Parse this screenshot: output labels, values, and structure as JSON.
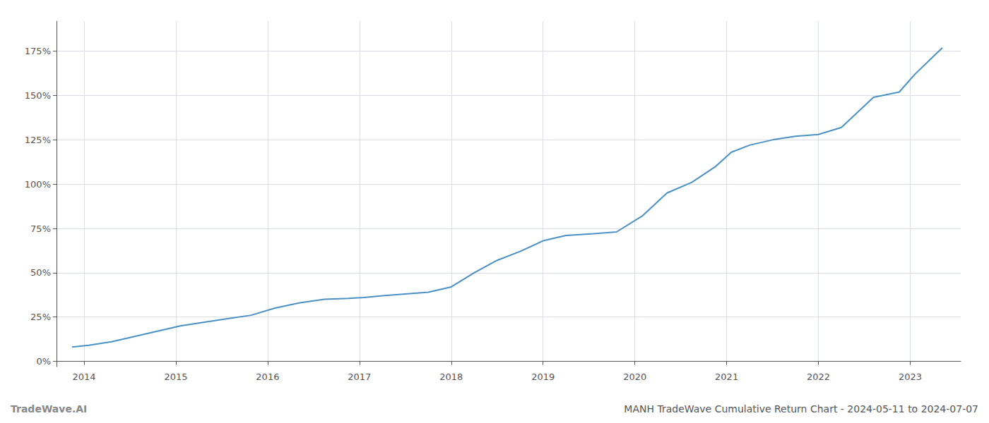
{
  "chart_data": {
    "type": "line",
    "title": "MANH TradeWave Cumulative Return Chart - 2024-05-11 to 2024-07-07",
    "annotations": [
      "TradeWave.AI"
    ],
    "color": "#4a90c4",
    "x": [
      2013.87,
      2014.05,
      2014.3,
      2014.55,
      2014.8,
      2015.05,
      2015.3,
      2015.55,
      2015.82,
      2016.08,
      2016.35,
      2016.62,
      2016.88,
      2017.05,
      2017.25,
      2017.5,
      2017.75,
      2018.0,
      2018.25,
      2018.5,
      2018.75,
      2019.0,
      2019.25,
      2019.55,
      2019.8,
      2020.08,
      2020.35,
      2020.62,
      2020.88,
      2021.05,
      2021.25,
      2021.5,
      2021.75,
      2022.0,
      2022.25,
      2022.6,
      2022.88,
      2023.05,
      2023.35
    ],
    "values": [
      0.08,
      0.09,
      0.11,
      0.14,
      0.17,
      0.2,
      0.22,
      0.24,
      0.26,
      0.3,
      0.33,
      0.35,
      0.355,
      0.36,
      0.37,
      0.38,
      0.39,
      0.42,
      0.5,
      0.57,
      0.62,
      0.68,
      0.71,
      0.72,
      0.73,
      0.82,
      0.95,
      1.01,
      1.1,
      1.18,
      1.22,
      1.25,
      1.27,
      1.28,
      1.32,
      1.49,
      1.52,
      1.62,
      1.77
    ],
    "xlim": [
      2013.7,
      2023.55
    ],
    "xticks": [
      2014,
      2015,
      2016,
      2017,
      2018,
      2019,
      2020,
      2021,
      2022,
      2023
    ],
    "ylim": [
      -0.03,
      1.92
    ],
    "yticks": [
      {
        "value": 0.0,
        "label": "0%"
      },
      {
        "value": 0.25,
        "label": "25%"
      },
      {
        "value": 0.5,
        "label": "50%"
      },
      {
        "value": 0.75,
        "label": "75%"
      },
      {
        "value": 1.0,
        "label": "100%"
      },
      {
        "value": 1.25,
        "label": "125%"
      },
      {
        "value": 1.5,
        "label": "150%"
      },
      {
        "value": 1.75,
        "label": "175%"
      }
    ],
    "grid": true
  }
}
